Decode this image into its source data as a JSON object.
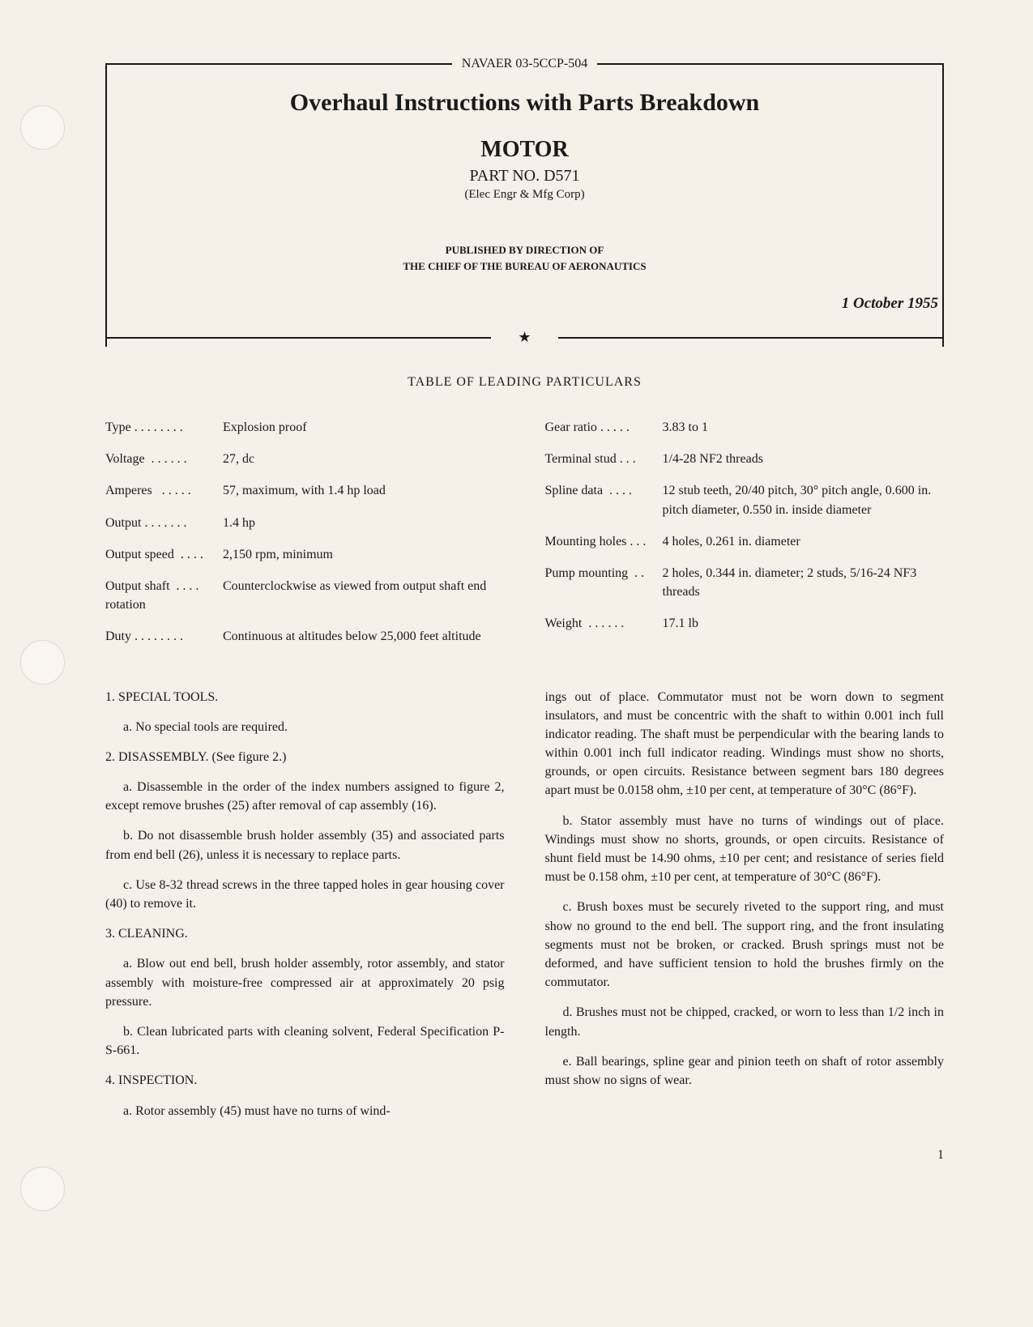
{
  "doc_number": "NAVAER 03-5CCP-504",
  "main_title": "Overhaul Instructions with Parts Breakdown",
  "motor_title": "MOTOR",
  "part_no": "PART NO. D571",
  "mfg": "(Elec Engr & Mfg Corp)",
  "published_line1": "PUBLISHED BY DIRECTION OF",
  "published_line2": "THE CHIEF OF THE BUREAU OF AERONAUTICS",
  "date": "1 October 1955",
  "table_heading": "TABLE OF LEADING PARTICULARS",
  "particulars_left": [
    {
      "label": "Type . . . . . . . .",
      "value": "Explosion proof"
    },
    {
      "label": "Voltage  . . . . . .",
      "value": "27, dc"
    },
    {
      "label": "Amperes   . . . . .",
      "value": "57, maximum, with 1.4 hp load"
    },
    {
      "label": "Output . . . . . . .",
      "value": "1.4 hp"
    },
    {
      "label": "Output speed  . . . .",
      "value": "2,150 rpm, minimum"
    },
    {
      "label": "Output shaft  . . . .\nrotation",
      "value": "Counterclockwise as viewed from output shaft end"
    },
    {
      "label": "Duty . . . . . . . .",
      "value": "Continuous at altitudes below 25,000 feet altitude"
    }
  ],
  "particulars_right": [
    {
      "label": "Gear ratio . . . . .",
      "value": "3.83 to 1"
    },
    {
      "label": "Terminal stud . . .",
      "value": "1/4-28 NF2 threads"
    },
    {
      "label": "Spline data  . . . .",
      "value": "12 stub teeth, 20/40 pitch, 30° pitch angle, 0.600 in. pitch diameter, 0.550 in. inside diameter"
    },
    {
      "label": "Mounting holes . . .",
      "value": "4 holes, 0.261 in. diameter"
    },
    {
      "label": "Pump mounting  . .",
      "value": "2 holes, 0.344 in. diameter; 2 studs, 5/16-24 NF3 threads"
    },
    {
      "label": "Weight  . . . . . .",
      "value": "17.1 lb"
    }
  ],
  "left_body": [
    {
      "type": "head",
      "text": "1. SPECIAL TOOLS."
    },
    {
      "type": "para",
      "text": "a. No special tools are required."
    },
    {
      "type": "head",
      "text": "2. DISASSEMBLY. (See figure 2.)"
    },
    {
      "type": "para",
      "text": "a. Disassemble in the order of the index numbers assigned to figure 2, except remove brushes (25) after removal of cap assembly (16)."
    },
    {
      "type": "para",
      "text": "b. Do not disassemble brush holder assembly (35) and associated parts from end bell (26), unless it is necessary to replace parts."
    },
    {
      "type": "para",
      "text": "c. Use 8-32 thread screws in the three tapped holes in gear housing cover (40) to remove it."
    },
    {
      "type": "head",
      "text": "3. CLEANING."
    },
    {
      "type": "para",
      "text": "a. Blow out end bell, brush holder assembly, rotor assembly, and stator assembly with moisture-free compressed air at approximately 20 psig pressure."
    },
    {
      "type": "para",
      "text": "b. Clean lubricated parts with cleaning solvent, Federal Specification P-S-661."
    },
    {
      "type": "head",
      "text": "4. INSPECTION."
    },
    {
      "type": "para",
      "text": "a. Rotor assembly (45) must have no turns of wind-"
    }
  ],
  "right_body": [
    {
      "type": "cont",
      "text": "ings out of place. Commutator must not be worn down to segment insulators, and must be concentric with the shaft to within 0.001 inch full indicator reading. The shaft must be perpendicular with the bearing lands to within 0.001 inch full indicator reading. Windings must show no shorts, grounds, or open circuits. Resistance between segment bars 180 degrees apart must be 0.0158 ohm, ±10 per cent, at temperature of 30°C (86°F)."
    },
    {
      "type": "para",
      "text": "b. Stator assembly must have no turns of windings out of place. Windings must show no shorts, grounds, or open circuits. Resistance of shunt field must be 14.90 ohms, ±10 per cent; and resistance of series field must be 0.158 ohm, ±10 per cent, at temperature of 30°C (86°F)."
    },
    {
      "type": "para",
      "text": "c. Brush boxes must be securely riveted to the support ring, and must show no ground to the end bell. The support ring, and the front insulating segments must not be broken, or cracked. Brush springs must not be deformed, and have sufficient tension to hold the brushes firmly on the commutator."
    },
    {
      "type": "para",
      "text": "d. Brushes must not be chipped, cracked, or worn to less than 1/2 inch in length."
    },
    {
      "type": "para",
      "text": "e. Ball bearings, spline gear and pinion teeth on shaft of rotor assembly must show no signs of wear."
    }
  ],
  "page_num": "1",
  "punch_positions": [
    130,
    790,
    1440
  ]
}
